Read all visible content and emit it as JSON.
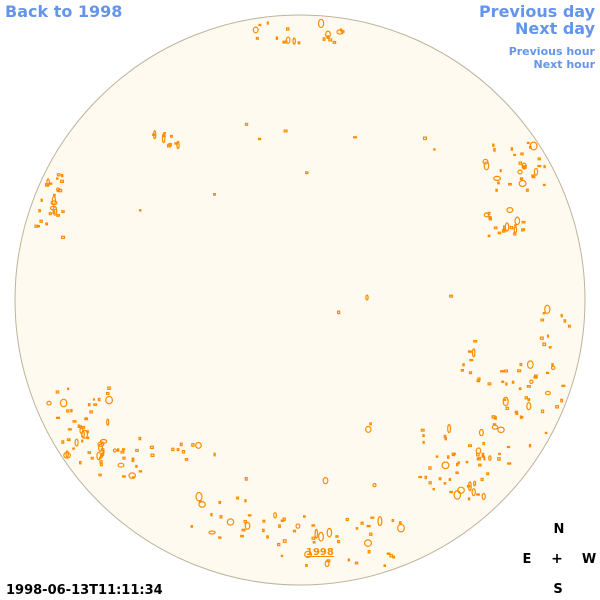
{
  "nav": {
    "back": "Back to 1998",
    "previous_day": "Previous day",
    "next_day": "Next day",
    "previous_hour": "Previous hour",
    "next_hour": "Next hour"
  },
  "year_link": "1998",
  "timestamp": "1998-06-13T11:11:34",
  "compass": {
    "north": "N",
    "east": "E",
    "center": "+",
    "west": "W",
    "south": "S"
  },
  "colors": {
    "disk_fill": "#fffaf0",
    "disk_edge": "#bdb39a",
    "contour": "#ff8c00",
    "link": "#6495ed"
  }
}
